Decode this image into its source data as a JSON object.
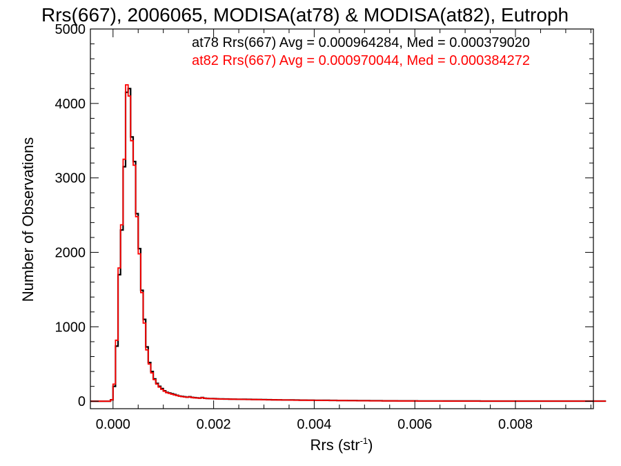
{
  "chart_data": {
    "type": "histogram",
    "title": "Rrs(667), 2006065, MODISA(at78) & MODISA(at82), Eutroph",
    "xlabel": "Rrs (str",
    "xlabel_sup": "-1",
    "xlabel_close": ")",
    "ylabel": "Number of Observations",
    "xlim": [
      -0.00045,
      0.00955
    ],
    "ylim": [
      -100,
      5000
    ],
    "xticks": [
      0.0,
      0.002,
      0.004,
      0.006,
      0.008
    ],
    "xtick_labels": [
      "0.000",
      "0.002",
      "0.004",
      "0.006",
      "0.008"
    ],
    "yticks": [
      0,
      1000,
      2000,
      3000,
      4000,
      5000
    ],
    "ytick_labels": [
      "0",
      "1000",
      "2000",
      "3000",
      "4000",
      "5000"
    ],
    "grid": false,
    "bin_start": -5e-05,
    "bin_width": 5e-05,
    "annotations": [
      "at78 Rrs(667) Avg = 0.000964284, Med = 0.000379020",
      "at82 Rrs(667) Avg = 0.000970044, Med = 0.000384272"
    ],
    "series": [
      {
        "name": "at78",
        "color": "#000000",
        "values": [
          20,
          200,
          740,
          1700,
          2300,
          3150,
          4150,
          4200,
          3550,
          3220,
          2520,
          2050,
          1490,
          1100,
          730,
          520,
          400,
          300,
          240,
          200,
          170,
          140,
          120,
          110,
          100,
          90,
          80,
          70,
          65,
          60,
          55,
          60,
          52,
          48,
          45,
          42,
          50,
          40,
          38,
          36,
          35,
          34,
          33,
          32,
          31,
          30,
          30,
          29,
          28,
          28,
          27,
          27,
          26,
          26,
          25,
          25,
          24,
          24,
          23,
          23,
          22,
          22,
          21,
          21,
          20,
          20,
          19,
          19,
          18,
          18,
          18,
          17,
          17,
          16,
          16,
          15,
          15,
          15,
          14,
          14,
          14,
          13,
          13,
          13,
          12,
          12,
          12,
          11,
          11,
          11,
          10,
          10,
          10,
          10,
          9,
          9,
          9,
          9,
          8,
          8,
          8,
          8,
          8,
          7,
          7,
          7,
          7,
          7,
          6,
          6,
          6,
          6,
          6,
          6,
          5,
          5,
          5,
          5,
          5,
          5,
          5,
          5,
          4,
          4,
          4,
          4,
          4,
          4,
          4,
          4,
          4,
          4,
          3,
          3,
          3,
          3,
          3,
          3,
          3,
          3,
          3,
          3,
          3,
          3,
          3,
          3,
          3,
          2,
          2,
          2,
          2,
          2,
          2,
          2,
          2,
          2,
          2,
          2,
          2,
          2,
          2,
          2,
          2,
          2,
          2,
          2,
          2,
          2,
          2,
          2,
          2,
          2,
          2,
          2,
          2,
          2,
          2,
          2,
          2,
          2,
          2,
          2,
          2,
          2,
          2,
          2,
          2,
          2,
          2,
          2,
          2,
          2,
          2,
          2,
          2,
          2,
          2
        ]
      },
      {
        "name": "at82",
        "color": "#ff0000",
        "values": [
          20,
          230,
          820,
          1790,
          2370,
          3250,
          4250,
          4100,
          3500,
          3170,
          2480,
          1980,
          1460,
          1050,
          690,
          500,
          380,
          290,
          230,
          190,
          160,
          135,
          115,
          105,
          95,
          85,
          78,
          68,
          62,
          58,
          54,
          58,
          50,
          46,
          44,
          41,
          48,
          39,
          37,
          35,
          34,
          33,
          32,
          31,
          30,
          29,
          29,
          28,
          27,
          27,
          26,
          26,
          25,
          25,
          24,
          24,
          23,
          23,
          22,
          22,
          21,
          21,
          20,
          20,
          19,
          19,
          18,
          18,
          17,
          17,
          17,
          16,
          16,
          15,
          15,
          14,
          14,
          14,
          13,
          13,
          13,
          12,
          12,
          12,
          11,
          11,
          11,
          10,
          10,
          10,
          9,
          9,
          9,
          9,
          8,
          8,
          8,
          8,
          7,
          7,
          7,
          7,
          7,
          6,
          6,
          6,
          6,
          6,
          5,
          5,
          5,
          5,
          5,
          5,
          4,
          4,
          4,
          4,
          4,
          4,
          4,
          4,
          3,
          3,
          3,
          3,
          3,
          3,
          3,
          3,
          3,
          3,
          2,
          2,
          2,
          2,
          2,
          2,
          2,
          2,
          2,
          2,
          2,
          2,
          2,
          2,
          2,
          2,
          2,
          2,
          2,
          2,
          2,
          2,
          2,
          2,
          2,
          2,
          2,
          2,
          2,
          2,
          2,
          2,
          2,
          2,
          2,
          2,
          2,
          2,
          2,
          2,
          2,
          2,
          2,
          2,
          2,
          2,
          2,
          2,
          2,
          2,
          2,
          2,
          2,
          2,
          2,
          2,
          2,
          2,
          2,
          2,
          2,
          2,
          2,
          2,
          2
        ]
      }
    ]
  }
}
